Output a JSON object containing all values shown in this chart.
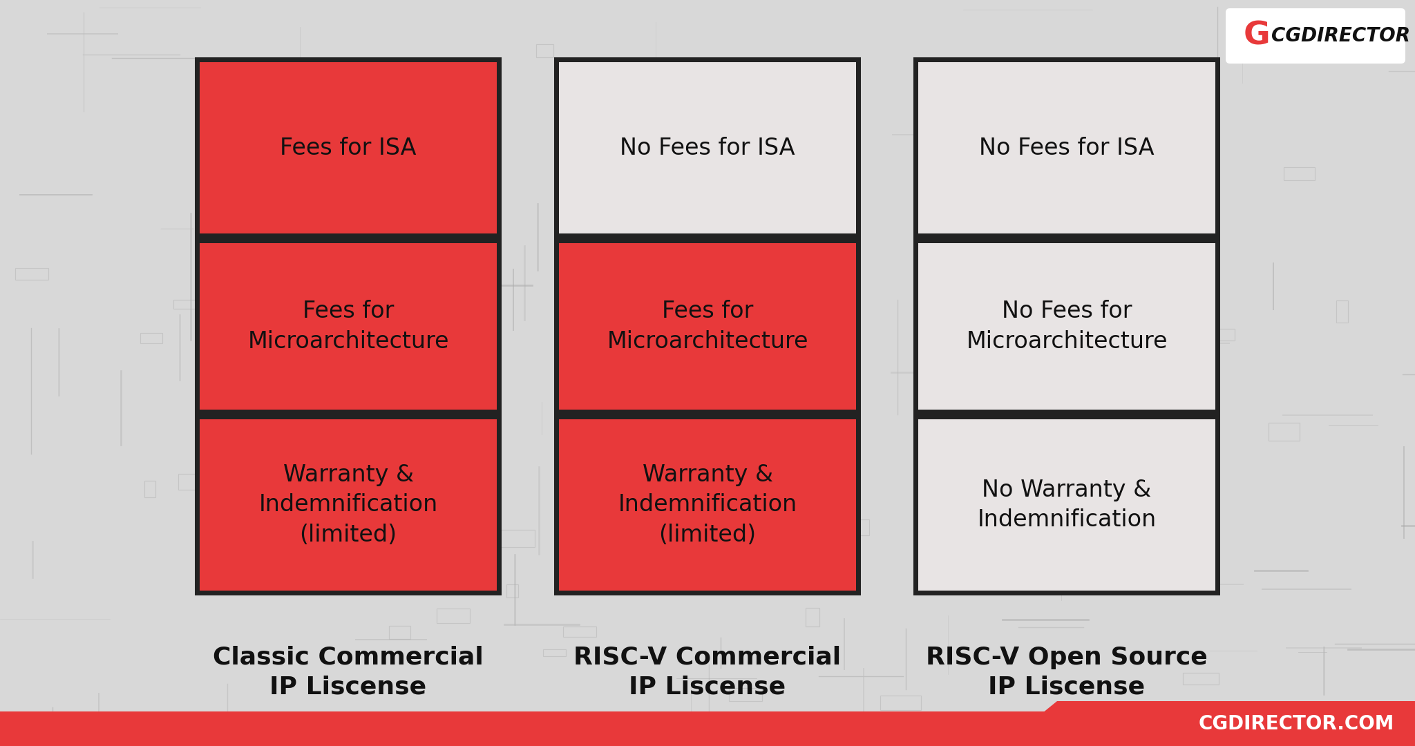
{
  "bg_color": "#d0d0d0",
  "red_color": "#e8393a",
  "light_cell_color": "#e8e4e4",
  "dark_border_color": "#222222",
  "text_dark": "#111111",
  "columns": [
    {
      "title": "Classic Commercial\nIP Liscense",
      "cells": [
        {
          "text": "Fees for ISA",
          "red": true
        },
        {
          "text": "Fees for\nMicroarchitecture",
          "red": true
        },
        {
          "text": "Warranty &\nIndemnification\n(limited)",
          "red": true
        }
      ]
    },
    {
      "title": "RISC-V Commercial\nIP Liscense",
      "cells": [
        {
          "text": "No Fees for ISA",
          "red": false
        },
        {
          "text": "Fees for\nMicroarchitecture",
          "red": true
        },
        {
          "text": "Warranty &\nIndemnification\n(limited)",
          "red": true
        }
      ]
    },
    {
      "title": "RISC-V Open Source\nIP Liscense",
      "cells": [
        {
          "text": "No Fees for ISA",
          "red": false
        },
        {
          "text": "No Fees for\nMicroarchitecture",
          "red": false
        },
        {
          "text": "No Warranty &\nIndemnification",
          "red": false
        }
      ]
    }
  ],
  "footer_text": "CGDIRECTOR.COM",
  "footer_bg": "#e8393a",
  "footer_text_color": "#ffffff",
  "cell_fontsize": 24,
  "title_fontsize": 26,
  "footer_fontsize": 20
}
